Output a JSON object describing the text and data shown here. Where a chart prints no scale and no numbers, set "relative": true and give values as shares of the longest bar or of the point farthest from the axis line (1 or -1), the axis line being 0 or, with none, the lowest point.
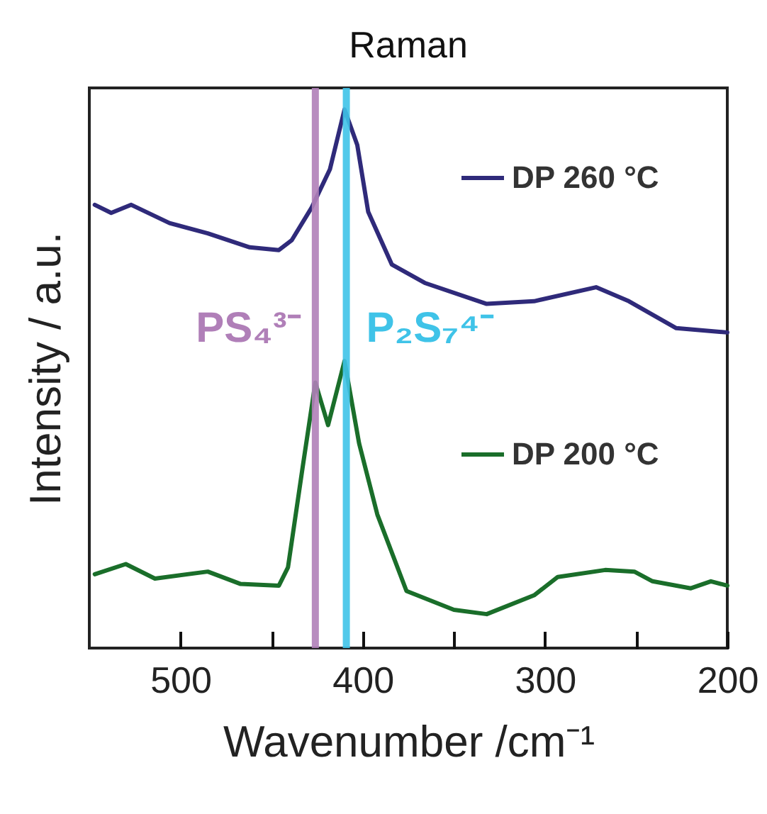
{
  "chart_data": {
    "type": "line",
    "title": "Raman",
    "xlabel": "Wavenumber /cm⁻¹",
    "ylabel": "Intensity / a.u.",
    "relative": true,
    "xlim": [
      550,
      200
    ],
    "xticks": [
      500,
      {
        "value": 450,
        "label": null
      },
      400,
      {
        "value": 350,
        "label": null
      },
      300,
      {
        "value": 250,
        "label": null
      },
      200
    ],
    "legend": "top right",
    "grid": false,
    "series": [
      {
        "name": "DP 260 °C",
        "color": "#2f2a7a",
        "x": [
          547,
          538,
          527,
          506,
          485,
          462,
          446,
          439,
          428,
          418,
          410,
          403,
          397,
          384,
          366,
          332,
          306,
          272,
          254,
          228,
          200
        ],
        "values": [
          0.823,
          0.808,
          0.823,
          0.789,
          0.77,
          0.744,
          0.739,
          0.757,
          0.818,
          0.889,
          1.0,
          0.934,
          0.81,
          0.712,
          0.678,
          0.639,
          0.644,
          0.67,
          0.644,
          0.594,
          0.586
        ]
      },
      {
        "name": "DP 200 °C",
        "color": "#1a6e2a",
        "x": [
          547,
          530,
          514,
          485,
          467,
          446,
          441,
          433,
          426,
          419,
          410,
          402,
          392,
          376,
          350,
          332,
          306,
          293,
          267,
          251,
          241,
          220,
          209,
          200
        ],
        "values": [
          0.137,
          0.156,
          0.129,
          0.142,
          0.119,
          0.116,
          0.15,
          0.335,
          0.493,
          0.414,
          0.533,
          0.38,
          0.248,
          0.106,
          0.071,
          0.063,
          0.098,
          0.132,
          0.145,
          0.142,
          0.124,
          0.111,
          0.124,
          0.116
        ]
      }
    ],
    "ref_lines": [
      {
        "axis": "x",
        "value": 426,
        "label": "PS₄³⁻",
        "color": "#b07fb8"
      },
      {
        "axis": "x",
        "value": 409,
        "label": "P₂S₇⁴⁻",
        "color": "#3fc3e8"
      }
    ]
  }
}
